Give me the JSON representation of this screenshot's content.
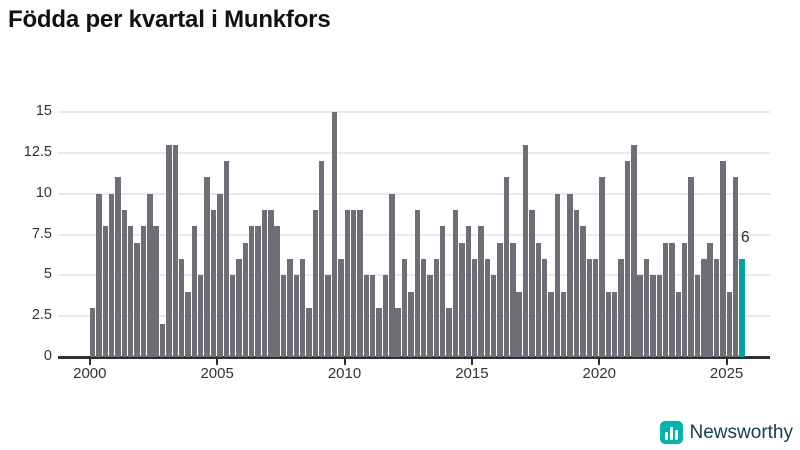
{
  "title": "Födda per kvartal i Munkfors",
  "annotation_label": "6",
  "logo": {
    "name": "Newsworthy",
    "icon": "bar-chart-icon"
  },
  "colors": {
    "bar": "#6e6e76",
    "highlight": "#00a3a3",
    "grid": "#e9e9e9",
    "axis": "#2e2e2e",
    "logo_bg": "#00b3ac"
  },
  "chart_data": {
    "type": "bar",
    "title": "Födda per kvartal i Munkfors",
    "start_period": "2000 Q1",
    "end_period": "2025 Q3",
    "period": "quarterly",
    "values": [
      3,
      10,
      8,
      10,
      11,
      9,
      8,
      7,
      8,
      10,
      8,
      2,
      13,
      13,
      6,
      4,
      8,
      5,
      11,
      9,
      10,
      12,
      5,
      6,
      7,
      8,
      8,
      9,
      9,
      8,
      5,
      6,
      5,
      6,
      3,
      9,
      12,
      5,
      15,
      6,
      9,
      9,
      9,
      5,
      5,
      3,
      5,
      10,
      3,
      6,
      4,
      9,
      6,
      5,
      6,
      8,
      3,
      9,
      7,
      8,
      6,
      8,
      6,
      5,
      7,
      11,
      7,
      4,
      13,
      9,
      7,
      6,
      4,
      10,
      4,
      10,
      9,
      8,
      6,
      6,
      11,
      4,
      4,
      6,
      12,
      13,
      5,
      6,
      5,
      5,
      7,
      7,
      4,
      7,
      11,
      5,
      6,
      7,
      6,
      12,
      4,
      11,
      6
    ],
    "highlight_index": 102,
    "annotation": {
      "text": "6",
      "target": "last-bar"
    },
    "x_tick_labels": [
      "2000",
      "2005",
      "2010",
      "2015",
      "2020",
      "2025"
    ],
    "x_tick_indices": [
      0,
      20,
      40,
      60,
      80,
      100
    ],
    "y_ticks": [
      0,
      2.5,
      5,
      7.5,
      10,
      12.5,
      15
    ],
    "y_tick_labels": [
      "0",
      "2.5",
      "5",
      "7.5",
      "10",
      "12.5",
      "15"
    ],
    "ylim": [
      0,
      15
    ],
    "grid": true,
    "legend": "none"
  }
}
